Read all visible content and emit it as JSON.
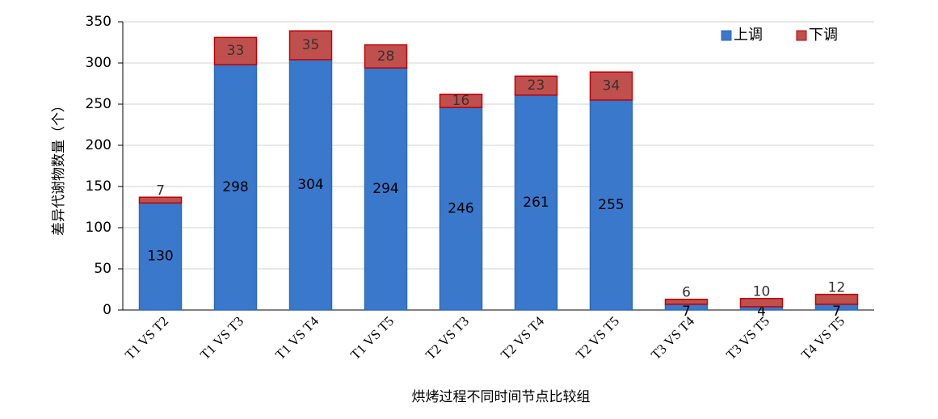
{
  "chart_data": {
    "type": "stacked_bar",
    "categories": [
      "T1 VS T2",
      "T1 VS T3",
      "T1 VS T4",
      "T1 VS T5",
      "T2 VS T3",
      "T2 VS T4",
      "T2 VS T5",
      "T3 VS T4",
      "T3 VS T5",
      "T4 VS T5"
    ],
    "series": [
      {
        "name": "上调",
        "color": "#3a78cc",
        "values": [
          130,
          298,
          304,
          294,
          246,
          261,
          255,
          7,
          4,
          7
        ]
      },
      {
        "name": "下调",
        "color": "#c0504d",
        "values": [
          7,
          33,
          35,
          28,
          16,
          23,
          34,
          6,
          10,
          12
        ]
      }
    ],
    "x_label": "烘烤过程不同时间节点比较组",
    "y_label": "差异代谢物数量（个）",
    "ylim": [
      0,
      350
    ],
    "yticks": [
      0,
      50,
      100,
      150,
      200,
      250,
      300,
      350
    ],
    "grid": true,
    "legend": "top-right"
  }
}
